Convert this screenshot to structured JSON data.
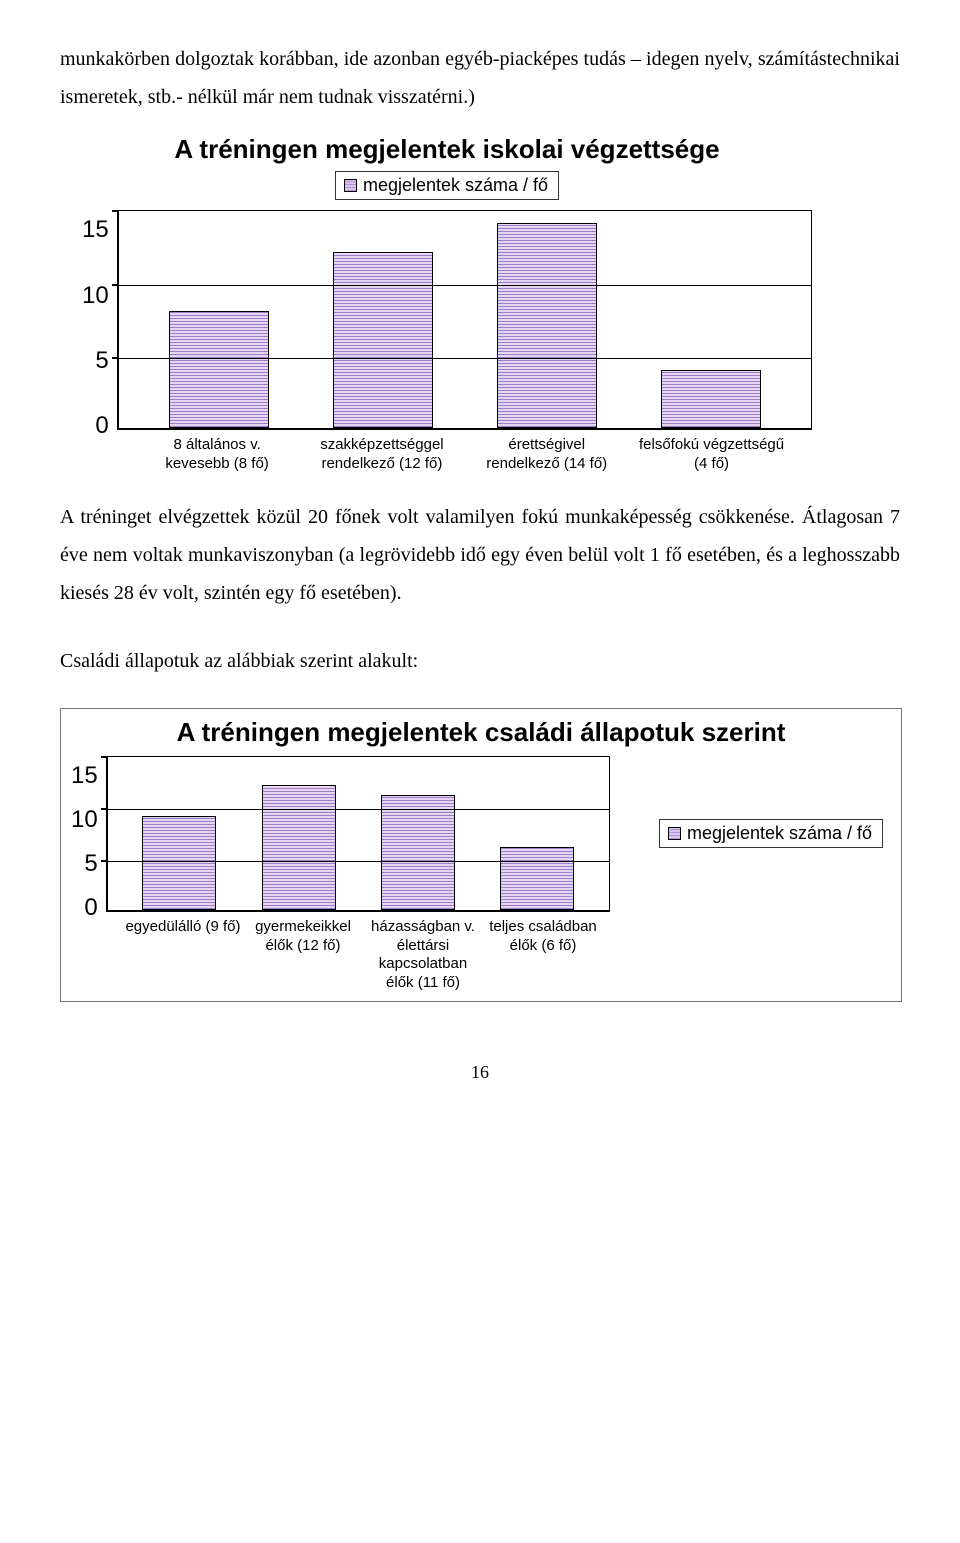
{
  "paragraphs": {
    "p1": "munkakörben dolgoztak korábban, ide azonban egyéb-piacképes tudás – idegen nyelv, számítástechnikai ismeretek, stb.- nélkül már nem tudnak visszatérni.)",
    "p2": "A tréninget elvégzettek közül 20 főnek volt valamilyen fokú munkaképesség csökkenése. Átlagosan 7 éve nem voltak munkaviszonyban (a legrövidebb idő egy éven belül volt 1 fő esetében, és a leghosszabb kiesés 28 év volt, szintén egy fő esetében).",
    "p3": "Családi állapotuk az alábbiak szerint alakult:"
  },
  "chart1": {
    "type": "bar",
    "title": "A tréningen megjelentek iskolai végzettsége",
    "legend_label": "megjelentek száma / fő",
    "ymax": 15,
    "ystep": 5,
    "categories": [
      "8 általános v. kevesebb (8 fő)",
      "szakképzettséggel rendelkező (12 fő)",
      "érettségivel rendelkező (14 fő)",
      "felsőfokú végzettségű (4 fő)"
    ],
    "values": [
      8,
      12,
      14,
      4
    ],
    "bar_fill": "#b094d6",
    "bar_stripe": "#e6d4f2",
    "bg": "#ffffff",
    "title_fontsize": 26
  },
  "chart2": {
    "type": "bar",
    "title": "A tréningen megjelentek családi állapotuk szerint",
    "legend_label": "megjelentek száma / fő",
    "ymax": 15,
    "ystep": 5,
    "categories": [
      "egyedülálló (9 fő)",
      "gyermekeikkel élők (12 fő)",
      "házasságban v. élettársi kapcsolatban élők (11 fő)",
      "teljes családban élők (6 fő)"
    ],
    "values": [
      9,
      12,
      11,
      6
    ],
    "bar_fill": "#b094d6",
    "bar_stripe": "#e6d4f2",
    "bg": "#ffffff",
    "title_fontsize": 26
  },
  "page_number": "16"
}
